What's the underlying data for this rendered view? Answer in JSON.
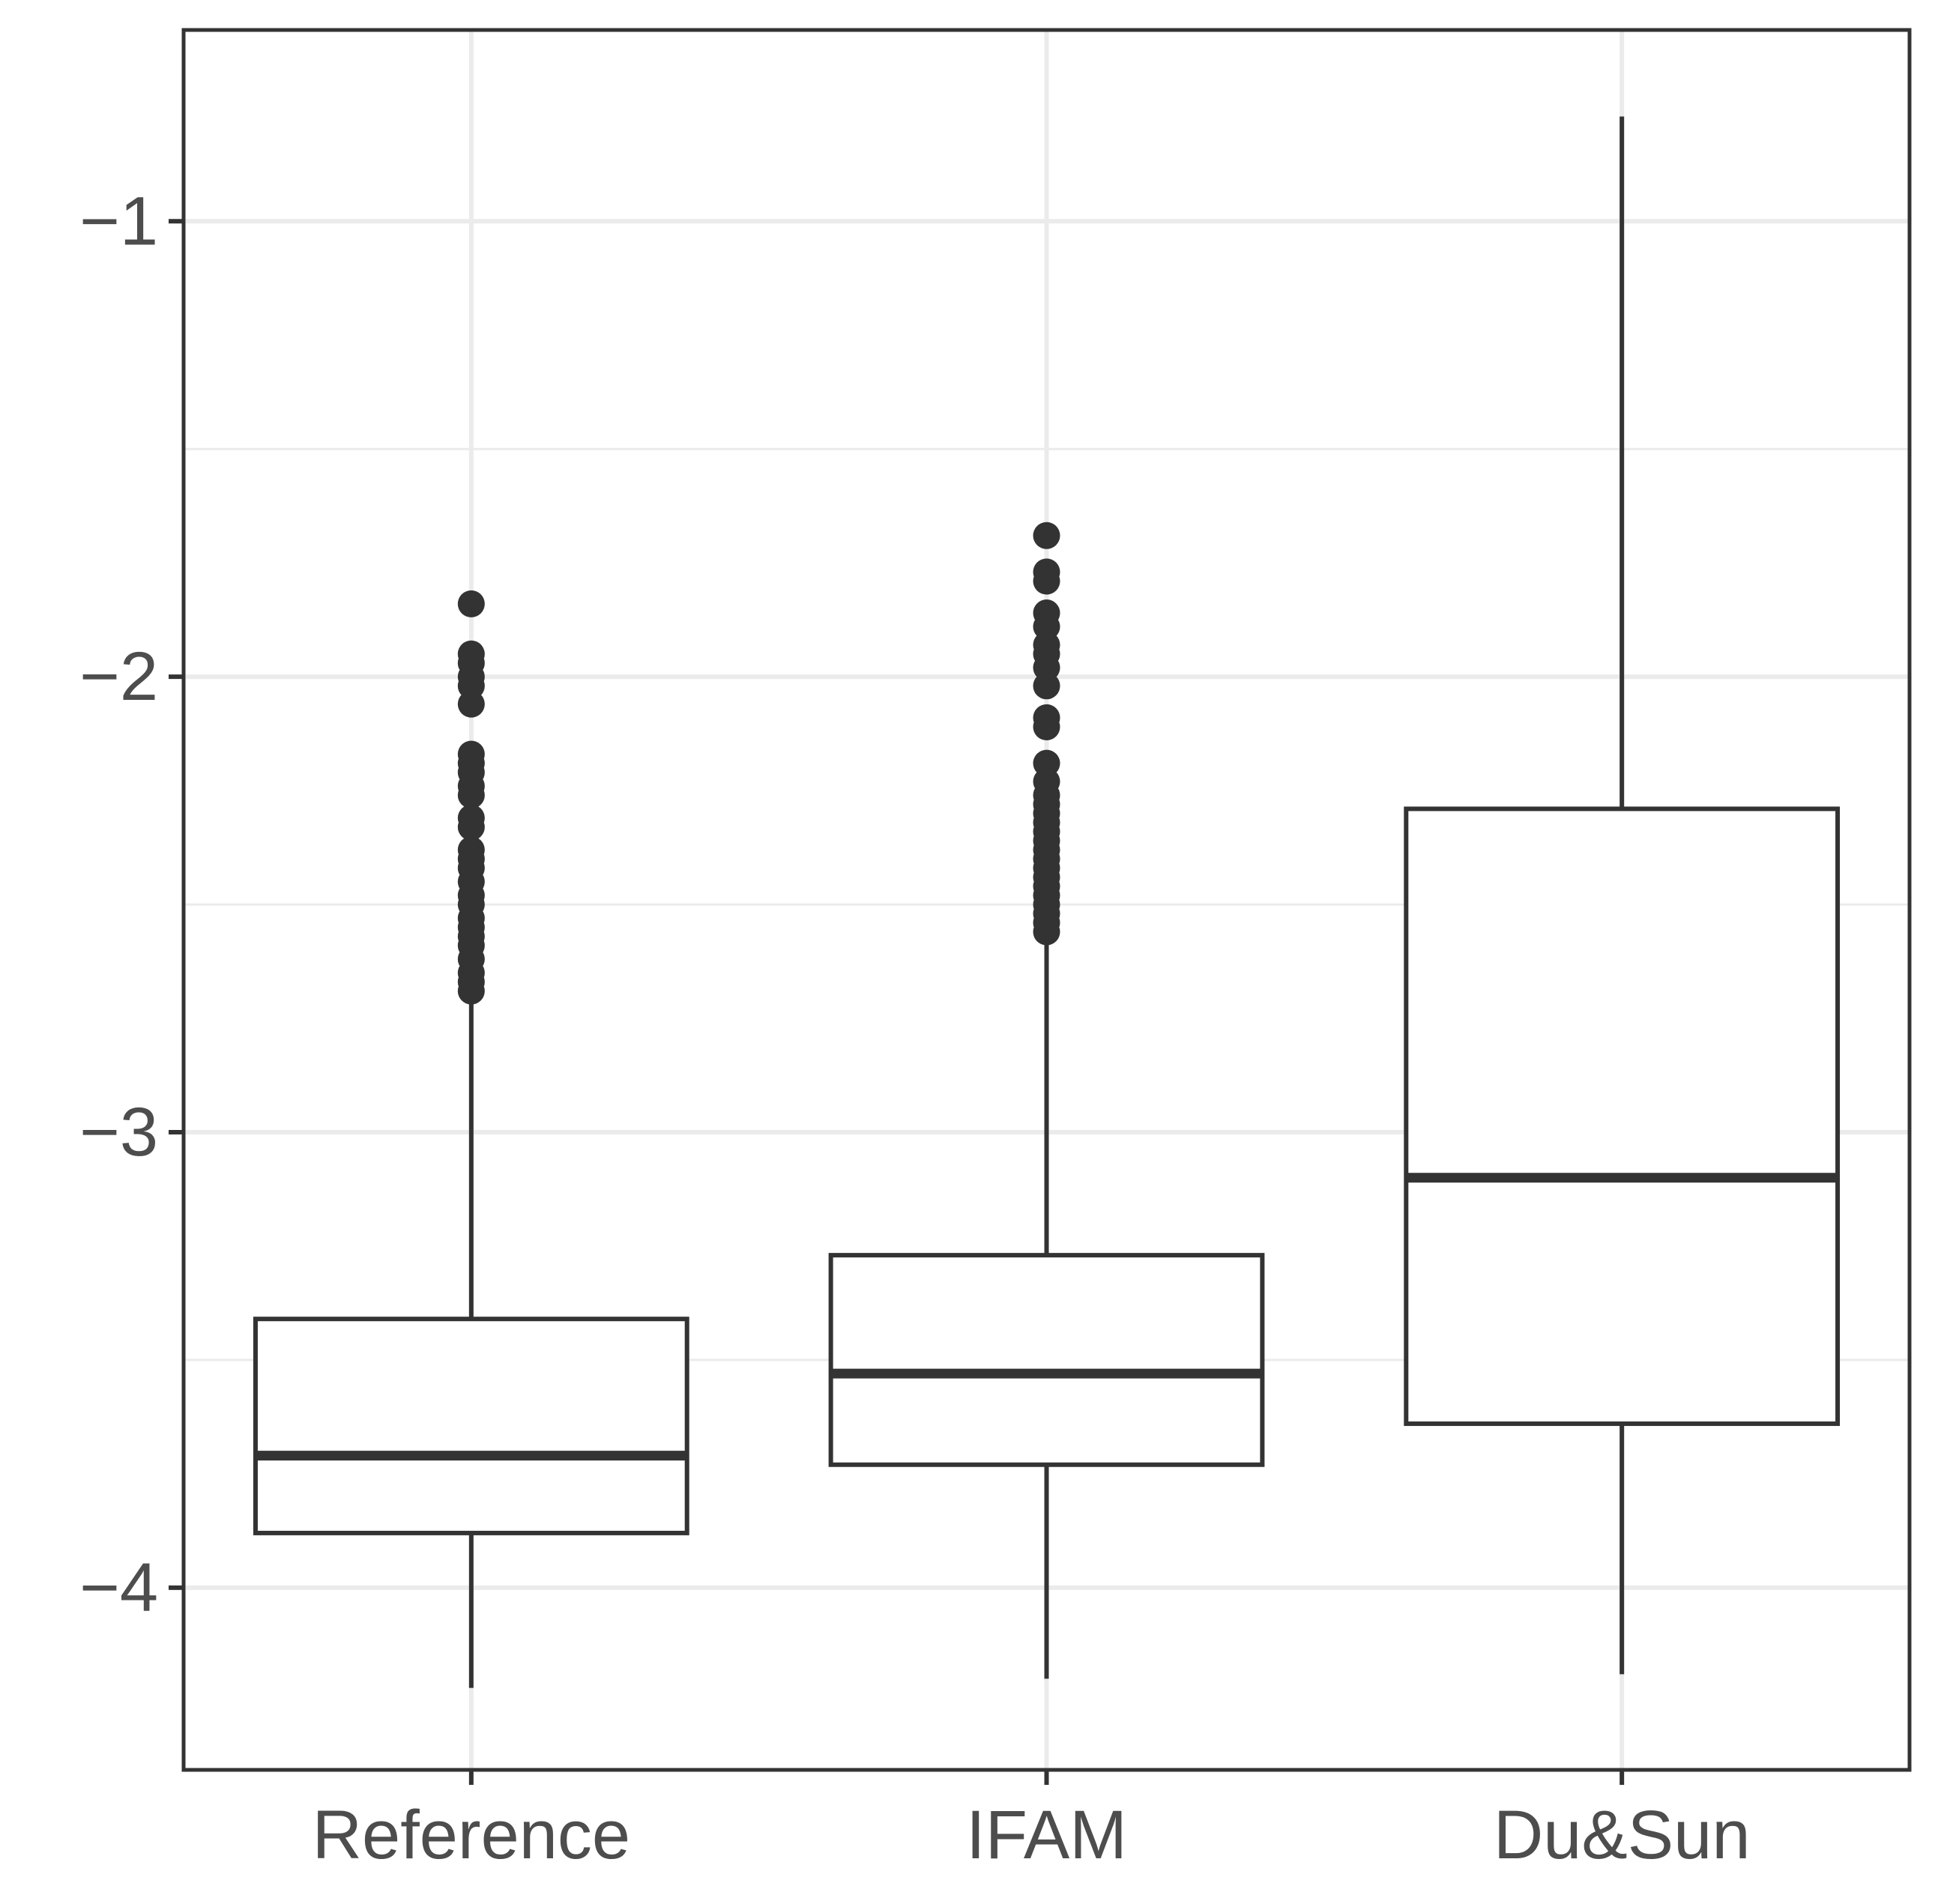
{
  "chart_data": {
    "type": "boxplot",
    "title": "",
    "xlabel": "",
    "ylabel": "",
    "categories": [
      "Reference",
      "IFAM",
      "Du&Sun"
    ],
    "ylim": [
      -4.4,
      -0.58
    ],
    "yticks": [
      -1,
      -2,
      -3,
      -4
    ],
    "ytick_labels": [
      "−1",
      "−2",
      "−3",
      "−4"
    ],
    "grid": true,
    "boxes": [
      {
        "name": "Reference",
        "whisker_low": -4.22,
        "q1": -3.88,
        "median": -3.71,
        "q3": -3.41,
        "whisker_high": -2.71,
        "outliers": [
          -1.84,
          -1.95,
          -1.97,
          -2.0,
          -2.02,
          -2.06,
          -2.17,
          -2.19,
          -2.21,
          -2.24,
          -2.26,
          -2.31,
          -2.33,
          -2.38,
          -2.4,
          -2.42,
          -2.45,
          -2.48,
          -2.5,
          -2.53,
          -2.55,
          -2.57,
          -2.59,
          -2.62,
          -2.65,
          -2.67,
          -2.69
        ]
      },
      {
        "name": "IFAM",
        "whisker_low": -4.2,
        "q1": -3.73,
        "median": -3.53,
        "q3": -3.27,
        "whisker_high": -2.57,
        "outliers": [
          -1.69,
          -1.77,
          -1.79,
          -1.86,
          -1.89,
          -1.93,
          -1.95,
          -1.98,
          -2.02,
          -2.09,
          -2.11,
          -2.19,
          -2.23,
          -2.26,
          -2.28,
          -2.3,
          -2.32,
          -2.34,
          -2.36,
          -2.38,
          -2.4,
          -2.42,
          -2.44,
          -2.46,
          -2.48,
          -2.5,
          -2.52,
          -2.54,
          -2.56
        ]
      },
      {
        "name": "Du&Sun",
        "whisker_low": -4.19,
        "q1": -3.64,
        "median": -3.1,
        "q3": -2.29,
        "whisker_high": -0.77,
        "outliers": []
      }
    ],
    "colors": {
      "box_stroke": "#333333",
      "box_fill": "#ffffff",
      "grid": "#ebebeb",
      "axis_text": "#4d4d4d"
    }
  }
}
